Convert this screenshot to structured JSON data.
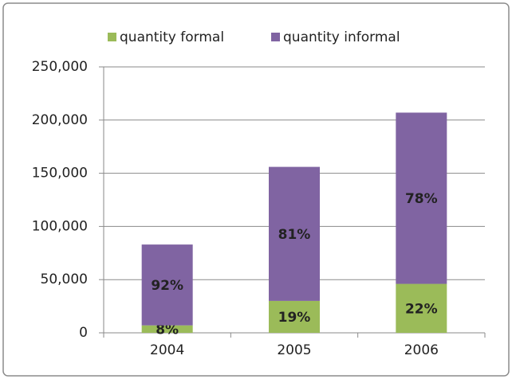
{
  "chart_data": {
    "type": "stacked_bar",
    "categories": [
      "2004",
      "2005",
      "2006"
    ],
    "series": [
      {
        "name": "quantity formal",
        "color": "#9bbb59",
        "values": [
          7000,
          30000,
          46000
        ],
        "data_labels": [
          "8%",
          "19%",
          "22%"
        ]
      },
      {
        "name": "quantity informal",
        "color": "#8064a2",
        "values": [
          76000,
          126000,
          161000
        ],
        "data_labels": [
          "92%",
          "81%",
          "78%"
        ]
      }
    ],
    "ylim": [
      0,
      250000
    ],
    "yticks": [
      0,
      {
        "value": 50000,
        "label": "50,000"
      },
      {
        "value": 100000,
        "label": "100,000"
      },
      {
        "value": 150000,
        "label": "150,000"
      },
      {
        "value": 200000,
        "label": "200,000"
      },
      {
        "value": 250000,
        "label": "250,000"
      }
    ],
    "grid": true,
    "legend": "top"
  }
}
